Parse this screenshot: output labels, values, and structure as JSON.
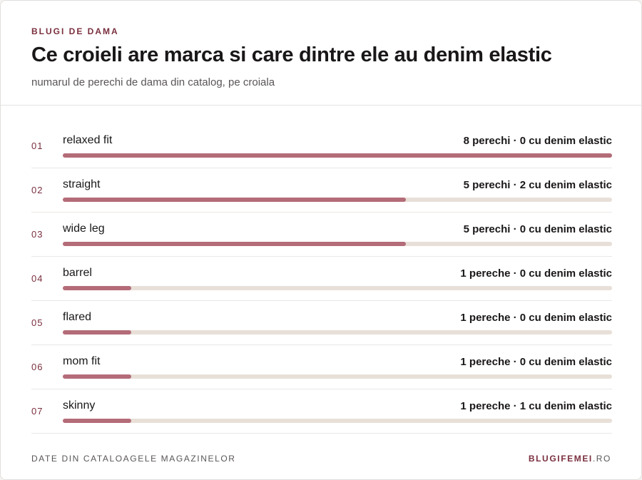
{
  "header": {
    "eyebrow": "BLUGI DE DAMA",
    "title": "Ce croieli are marca si care dintre ele au denim elastic",
    "subtitle": "numarul de perechi de dama din catalog, pe croiala"
  },
  "chart_data": {
    "type": "bar",
    "orientation": "horizontal",
    "max": 8,
    "rows": [
      {
        "index": "01",
        "category": "relaxed fit",
        "value": 8,
        "stretch": 0,
        "value_label": "8 perechi · 0 cu denim elastic"
      },
      {
        "index": "02",
        "category": "straight",
        "value": 5,
        "stretch": 2,
        "value_label": "5 perechi · 2 cu denim elastic"
      },
      {
        "index": "03",
        "category": "wide leg",
        "value": 5,
        "stretch": 0,
        "value_label": "5 perechi · 0 cu denim elastic"
      },
      {
        "index": "04",
        "category": "barrel",
        "value": 1,
        "stretch": 0,
        "value_label": "1 pereche · 0 cu denim elastic"
      },
      {
        "index": "05",
        "category": "flared",
        "value": 1,
        "stretch": 0,
        "value_label": "1 pereche · 0 cu denim elastic"
      },
      {
        "index": "06",
        "category": "mom fit",
        "value": 1,
        "stretch": 0,
        "value_label": "1 pereche · 0 cu denim elastic"
      },
      {
        "index": "07",
        "category": "skinny",
        "value": 1,
        "stretch": 1,
        "value_label": "1 pereche · 1 cu denim elastic"
      }
    ]
  },
  "footer": {
    "source": "DATE DIN CATALOAGELE MAGAZINELOR",
    "brand": "BLUGIFEMEI",
    "brand_suffix": ".RO"
  },
  "colors": {
    "accent": "#7a2f3f",
    "bar_fill": "#b46c78",
    "bar_track": "#e8e0d8"
  }
}
